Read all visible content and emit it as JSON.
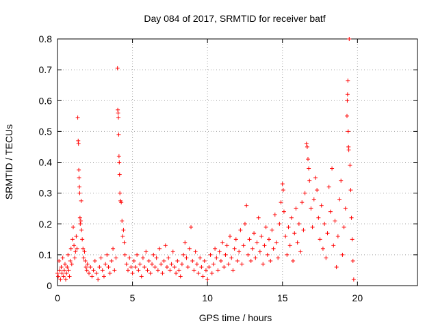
{
  "chart_data": {
    "type": "scatter",
    "title": "Day 084 of 2017, SRMTID for receiver batf",
    "xlabel": "GPS time / hours",
    "ylabel": "SRMTID / TECUs",
    "xlim": [
      0,
      24
    ],
    "ylim": [
      0,
      0.8
    ],
    "xticks": [
      0,
      5,
      10,
      15,
      20
    ],
    "yticks": [
      0,
      0.1,
      0.2,
      0.3,
      0.4,
      0.5,
      0.6,
      0.7,
      0.8
    ],
    "xtick_labels": [
      "0",
      "5",
      "10",
      "15",
      "20"
    ],
    "ytick_labels": [
      "0",
      "0.1",
      "0.2",
      "0.3",
      "0.4",
      "0.5",
      "0.6",
      "0.7",
      "0.8"
    ],
    "grid": true,
    "marker": "+",
    "color": "#ff0000",
    "series": [
      {
        "name": "SRMTID",
        "points": [
          [
            0.0,
            0.04
          ],
          [
            0.05,
            0.03
          ],
          [
            0.1,
            0.08
          ],
          [
            0.15,
            0.05
          ],
          [
            0.2,
            0.02
          ],
          [
            0.25,
            0.06
          ],
          [
            0.3,
            0.04
          ],
          [
            0.35,
            0.09
          ],
          [
            0.4,
            0.03
          ],
          [
            0.45,
            0.05
          ],
          [
            0.5,
            0.07
          ],
          [
            0.55,
            0.02
          ],
          [
            0.6,
            0.04
          ],
          [
            0.65,
            0.06
          ],
          [
            0.7,
            0.1
          ],
          [
            0.75,
            0.05
          ],
          [
            0.8,
            0.03
          ],
          [
            0.85,
            0.08
          ],
          [
            0.9,
            0.12
          ],
          [
            0.95,
            0.07
          ],
          [
            1.0,
            0.15
          ],
          [
            1.05,
            0.19
          ],
          [
            1.1,
            0.13
          ],
          [
            1.15,
            0.09
          ],
          [
            1.2,
            0.11
          ],
          [
            1.25,
            0.16
          ],
          [
            1.3,
            0.12
          ],
          [
            1.35,
            0.545
          ],
          [
            1.38,
            0.47
          ],
          [
            1.4,
            0.46
          ],
          [
            1.42,
            0.375
          ],
          [
            1.44,
            0.35
          ],
          [
            1.46,
            0.32
          ],
          [
            1.48,
            0.3
          ],
          [
            1.5,
            0.22
          ],
          [
            1.52,
            0.2
          ],
          [
            1.55,
            0.21
          ],
          [
            1.58,
            0.275
          ],
          [
            1.6,
            0.18
          ],
          [
            1.65,
            0.15
          ],
          [
            1.7,
            0.12
          ],
          [
            1.75,
            0.09
          ],
          [
            1.8,
            0.11
          ],
          [
            1.85,
            0.08
          ],
          [
            1.9,
            0.06
          ],
          [
            1.95,
            0.05
          ],
          [
            2.0,
            0.07
          ],
          [
            2.1,
            0.04
          ],
          [
            2.2,
            0.06
          ],
          [
            2.3,
            0.03
          ],
          [
            2.4,
            0.05
          ],
          [
            2.5,
            0.08
          ],
          [
            2.6,
            0.04
          ],
          [
            2.7,
            0.02
          ],
          [
            2.8,
            0.06
          ],
          [
            2.9,
            0.09
          ],
          [
            3.0,
            0.05
          ],
          [
            3.1,
            0.03
          ],
          [
            3.2,
            0.07
          ],
          [
            3.3,
            0.1
          ],
          [
            3.4,
            0.06
          ],
          [
            3.5,
            0.04
          ],
          [
            3.6,
            0.08
          ],
          [
            3.7,
            0.12
          ],
          [
            3.8,
            0.05
          ],
          [
            3.9,
            0.09
          ],
          [
            4.0,
            0.705
          ],
          [
            4.02,
            0.57
          ],
          [
            4.04,
            0.56
          ],
          [
            4.06,
            0.545
          ],
          [
            4.08,
            0.49
          ],
          [
            4.1,
            0.42
          ],
          [
            4.12,
            0.4
          ],
          [
            4.14,
            0.36
          ],
          [
            4.16,
            0.3
          ],
          [
            4.2,
            0.275
          ],
          [
            4.25,
            0.27
          ],
          [
            4.3,
            0.21
          ],
          [
            4.35,
            0.16
          ],
          [
            4.4,
            0.18
          ],
          [
            4.45,
            0.14
          ],
          [
            4.5,
            0.1
          ],
          [
            4.6,
            0.07
          ],
          [
            4.7,
            0.05
          ],
          [
            4.8,
            0.09
          ],
          [
            4.9,
            0.06
          ],
          [
            5.0,
            0.04
          ],
          [
            5.1,
            0.08
          ],
          [
            5.2,
            0.06
          ],
          [
            5.3,
            0.1
          ],
          [
            5.4,
            0.05
          ],
          [
            5.5,
            0.07
          ],
          [
            5.6,
            0.03
          ],
          [
            5.7,
            0.09
          ],
          [
            5.8,
            0.06
          ],
          [
            5.9,
            0.11
          ],
          [
            6.0,
            0.05
          ],
          [
            6.1,
            0.08
          ],
          [
            6.2,
            0.04
          ],
          [
            6.3,
            0.07
          ],
          [
            6.4,
            0.1
          ],
          [
            6.5,
            0.06
          ],
          [
            6.6,
            0.09
          ],
          [
            6.7,
            0.05
          ],
          [
            6.8,
            0.12
          ],
          [
            6.9,
            0.07
          ],
          [
            7.0,
            0.04
          ],
          [
            7.1,
            0.08
          ],
          [
            7.2,
            0.13
          ],
          [
            7.3,
            0.06
          ],
          [
            7.4,
            0.09
          ],
          [
            7.5,
            0.05
          ],
          [
            7.6,
            0.07
          ],
          [
            7.7,
            0.11
          ],
          [
            7.8,
            0.06
          ],
          [
            7.9,
            0.04
          ],
          [
            8.0,
            0.08
          ],
          [
            8.1,
            0.05
          ],
          [
            8.2,
            0.03
          ],
          [
            8.3,
            0.07
          ],
          [
            8.4,
            0.1
          ],
          [
            8.5,
            0.14
          ],
          [
            8.6,
            0.09
          ],
          [
            8.7,
            0.06
          ],
          [
            8.8,
            0.12
          ],
          [
            8.9,
            0.19
          ],
          [
            9.0,
            0.08
          ],
          [
            9.1,
            0.05
          ],
          [
            9.2,
            0.11
          ],
          [
            9.3,
            0.07
          ],
          [
            9.4,
            0.04
          ],
          [
            9.5,
            0.09
          ],
          [
            9.6,
            0.06
          ],
          [
            9.7,
            0.03
          ],
          [
            9.8,
            0.08
          ],
          [
            9.9,
            0.05
          ],
          [
            10.0,
            0.02
          ],
          [
            10.1,
            0.06
          ],
          [
            10.2,
            0.1
          ],
          [
            10.3,
            0.04
          ],
          [
            10.4,
            0.07
          ],
          [
            10.5,
            0.12
          ],
          [
            10.6,
            0.09
          ],
          [
            10.7,
            0.05
          ],
          [
            10.8,
            0.11
          ],
          [
            10.9,
            0.08
          ],
          [
            11.0,
            0.14
          ],
          [
            11.1,
            0.06
          ],
          [
            11.2,
            0.1
          ],
          [
            11.3,
            0.13
          ],
          [
            11.4,
            0.07
          ],
          [
            11.5,
            0.16
          ],
          [
            11.6,
            0.09
          ],
          [
            11.7,
            0.05
          ],
          [
            11.8,
            0.12
          ],
          [
            11.9,
            0.15
          ],
          [
            12.0,
            0.08
          ],
          [
            12.1,
            0.11
          ],
          [
            12.2,
            0.18
          ],
          [
            12.3,
            0.07
          ],
          [
            12.4,
            0.13
          ],
          [
            12.5,
            0.2
          ],
          [
            12.6,
            0.26
          ],
          [
            12.7,
            0.1
          ],
          [
            12.8,
            0.15
          ],
          [
            12.9,
            0.08
          ],
          [
            13.0,
            0.12
          ],
          [
            13.1,
            0.17
          ],
          [
            13.2,
            0.09
          ],
          [
            13.3,
            0.14
          ],
          [
            13.4,
            0.22
          ],
          [
            13.5,
            0.11
          ],
          [
            13.6,
            0.16
          ],
          [
            13.7,
            0.07
          ],
          [
            13.8,
            0.13
          ],
          [
            13.9,
            0.19
          ],
          [
            14.0,
            0.1
          ],
          [
            14.1,
            0.15
          ],
          [
            14.2,
            0.08
          ],
          [
            14.3,
            0.18
          ],
          [
            14.4,
            0.12
          ],
          [
            14.5,
            0.23
          ],
          [
            14.6,
            0.14
          ],
          [
            14.7,
            0.09
          ],
          [
            14.8,
            0.2
          ],
          [
            14.9,
            0.27
          ],
          [
            15.0,
            0.33
          ],
          [
            15.05,
            0.31
          ],
          [
            15.1,
            0.24
          ],
          [
            15.2,
            0.16
          ],
          [
            15.3,
            0.1
          ],
          [
            15.4,
            0.19
          ],
          [
            15.5,
            0.13
          ],
          [
            15.6,
            0.22
          ],
          [
            15.7,
            0.08
          ],
          [
            15.8,
            0.17
          ],
          [
            15.9,
            0.25
          ],
          [
            16.0,
            0.14
          ],
          [
            16.1,
            0.2
          ],
          [
            16.2,
            0.11
          ],
          [
            16.3,
            0.27
          ],
          [
            16.4,
            0.18
          ],
          [
            16.5,
            0.3
          ],
          [
            16.6,
            0.46
          ],
          [
            16.65,
            0.45
          ],
          [
            16.7,
            0.41
          ],
          [
            16.75,
            0.38
          ],
          [
            16.8,
            0.34
          ],
          [
            16.9,
            0.25
          ],
          [
            17.0,
            0.19
          ],
          [
            17.1,
            0.28
          ],
          [
            17.2,
            0.35
          ],
          [
            17.3,
            0.31
          ],
          [
            17.4,
            0.22
          ],
          [
            17.5,
            0.15
          ],
          [
            17.6,
            0.26
          ],
          [
            17.7,
            0.12
          ],
          [
            17.8,
            0.2
          ],
          [
            17.9,
            0.09
          ],
          [
            18.0,
            0.17
          ],
          [
            18.1,
            0.32
          ],
          [
            18.2,
            0.24
          ],
          [
            18.3,
            0.38
          ],
          [
            18.4,
            0.13
          ],
          [
            18.5,
            0.21
          ],
          [
            18.6,
            0.06
          ],
          [
            18.7,
            0.16
          ],
          [
            18.8,
            0.28
          ],
          [
            18.9,
            0.34
          ],
          [
            19.0,
            0.1
          ],
          [
            19.1,
            0.19
          ],
          [
            19.2,
            0.25
          ],
          [
            19.3,
            0.55
          ],
          [
            19.32,
            0.6
          ],
          [
            19.34,
            0.62
          ],
          [
            19.36,
            0.665
          ],
          [
            19.38,
            0.5
          ],
          [
            19.4,
            0.45
          ],
          [
            19.42,
            0.44
          ],
          [
            19.45,
            0.8
          ],
          [
            19.5,
            0.39
          ],
          [
            19.55,
            0.31
          ],
          [
            19.6,
            0.22
          ],
          [
            19.65,
            0.15
          ],
          [
            19.7,
            0.08
          ],
          [
            19.75,
            0.02
          ]
        ]
      }
    ]
  }
}
